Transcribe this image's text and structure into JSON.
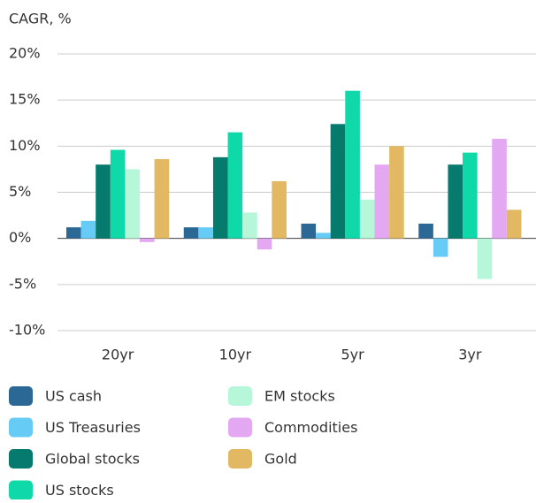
{
  "chart_data": {
    "type": "bar",
    "y_axis_label": "CAGR, %",
    "categories": [
      "20yr",
      "10yr",
      "5yr",
      "3yr"
    ],
    "series": [
      {
        "name": "US cash",
        "color": "#2b6896",
        "values": [
          1.2,
          1.2,
          1.6,
          1.6
        ]
      },
      {
        "name": "US Treasuries",
        "color": "#66ccf5",
        "values": [
          1.9,
          1.2,
          0.6,
          -2.0
        ]
      },
      {
        "name": "Global stocks",
        "color": "#067a6d",
        "values": [
          8.0,
          8.8,
          12.4,
          8.0
        ]
      },
      {
        "name": "US stocks",
        "color": "#0fd9a8",
        "values": [
          9.6,
          11.5,
          16.0,
          9.3
        ]
      },
      {
        "name": "EM stocks",
        "color": "#b6f7da",
        "values": [
          7.5,
          2.8,
          4.2,
          -4.4
        ]
      },
      {
        "name": "Commodities",
        "color": "#e4a8f3",
        "values": [
          -0.4,
          -1.2,
          8.0,
          10.8
        ]
      },
      {
        "name": "Gold",
        "color": "#e2b863",
        "values": [
          8.6,
          6.2,
          10.0,
          3.1
        ]
      }
    ],
    "ylim": [
      -10,
      20
    ],
    "yticks": [
      {
        "value": 20,
        "label": "20%"
      },
      {
        "value": 15,
        "label": "15%"
      },
      {
        "value": 10,
        "label": "10%"
      },
      {
        "value": 5,
        "label": "5%"
      },
      {
        "value": 0,
        "label": "0%"
      },
      {
        "value": -5,
        "label": "-5%"
      },
      {
        "value": -10,
        "label": "-10%"
      }
    ],
    "grid": true,
    "legend": "bottom"
  }
}
